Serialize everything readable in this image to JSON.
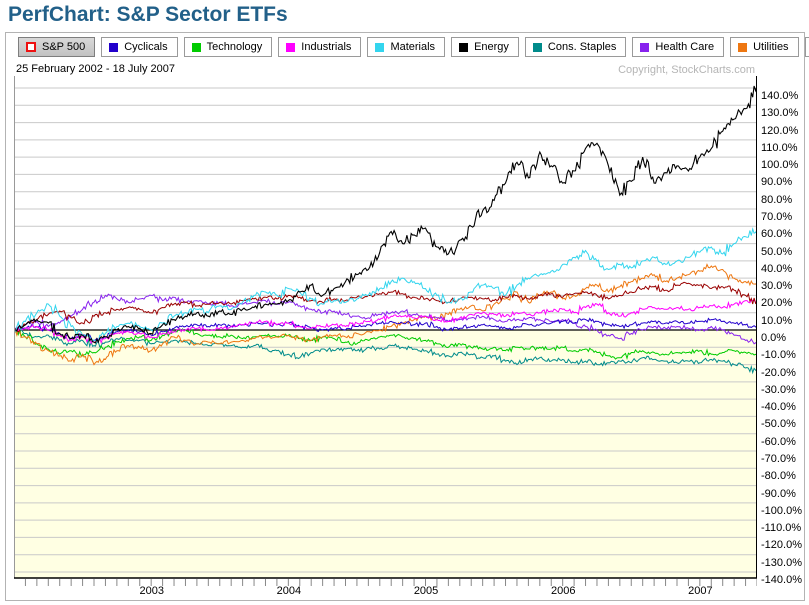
{
  "page": {
    "title": "PerfChart: S&P Sector ETFs",
    "date_range": "25 February 2002 - 18 July 2007",
    "copyright": "Copyright, StockCharts.com"
  },
  "colors": {
    "title_text": "#226089",
    "grid_line": "#c9c9c9",
    "zero_line": "#000000",
    "below_zero_bg": "#ffffe3",
    "above_zero_bg": "#ffffff",
    "plot_left_border": "#999999",
    "plot_right_border": "#000000",
    "axis_line": "#000000",
    "tick_mark": "#888888"
  },
  "legend": {
    "items": [
      {
        "label": "S&P 500",
        "color": "#ee1111",
        "swatch": "outline",
        "selected": true
      },
      {
        "label": "Cyclicals",
        "color": "#2200cc",
        "swatch": "filled",
        "selected": false
      },
      {
        "label": "Technology",
        "color": "#00cc00",
        "swatch": "filled",
        "selected": false
      },
      {
        "label": "Industrials",
        "color": "#ff00ff",
        "swatch": "filled",
        "selected": false
      },
      {
        "label": "Materials",
        "color": "#33d5ee",
        "swatch": "filled",
        "selected": false
      },
      {
        "label": "Energy",
        "color": "#000000",
        "swatch": "filled",
        "selected": false
      },
      {
        "label": "Cons. Staples",
        "color": "#008b8b",
        "swatch": "filled",
        "selected": false
      },
      {
        "label": "Health Care",
        "color": "#8822ee",
        "swatch": "filled",
        "selected": false
      },
      {
        "label": "Utilities",
        "color": "#ee7711",
        "swatch": "filled",
        "selected": false
      },
      {
        "label": "Financials",
        "color": "#990000",
        "swatch": "filled",
        "selected": false
      }
    ]
  },
  "chart_data": {
    "type": "line",
    "title": "PerfChart: S&P Sector ETFs",
    "x_range_label": "25 February 2002 - 18 July 2007",
    "x_granularity": "monthly estimates read from daily chart, Feb 2002 - Jul 2007",
    "ylim": [
      -140,
      140
    ],
    "y_step": 10,
    "unit": "%",
    "grid": true,
    "y_tick_labels": [
      "140.0%",
      "130.0%",
      "120.0%",
      "110.0%",
      "100.0%",
      "90.0%",
      "80.0%",
      "70.0%",
      "60.0%",
      "50.0%",
      "40.0%",
      "30.0%",
      "20.0%",
      "10.0%",
      "0.0%",
      "-10.0%",
      "-20.0%",
      "-30.0%",
      "-40.0%",
      "-50.0%",
      "-60.0%",
      "-70.0%",
      "-80.0%",
      "-90.0%",
      "-100.0%",
      "-110.0%",
      "-120.0%",
      "-130.0%",
      "-140.0%"
    ],
    "x_year_ticks": [
      {
        "label": "2003",
        "month_index": 11
      },
      {
        "label": "2004",
        "month_index": 23
      },
      {
        "label": "2005",
        "month_index": 35
      },
      {
        "label": "2006",
        "month_index": 47
      },
      {
        "label": "2007",
        "month_index": 59
      }
    ],
    "months_total": 66,
    "series": [
      {
        "name": "S&P 500",
        "color": "#ee1111",
        "visible": false,
        "values": []
      },
      {
        "name": "Cons. Staples",
        "color": "#008b8b",
        "visible": true,
        "values": [
          0,
          -2,
          -4,
          -3,
          -6,
          -8,
          -6,
          -9,
          -7,
          -5,
          -6,
          -6,
          -8,
          -7,
          -6,
          -7,
          -8,
          -9,
          -8,
          -9,
          -10,
          -9,
          -11,
          -12,
          -14,
          -16,
          -13,
          -11,
          -12,
          -11,
          -12,
          -10,
          -11,
          -9,
          -10,
          -11,
          -12,
          -14,
          -15,
          -13,
          -14,
          -16,
          -15,
          -18,
          -20,
          -17,
          -16,
          -18,
          -17,
          -19,
          -18,
          -20,
          -19,
          -18,
          -19,
          -16,
          -17,
          -18,
          -19,
          -18,
          -19,
          -17,
          -18,
          -20,
          -22,
          -24
        ]
      },
      {
        "name": "Technology",
        "color": "#00cc00",
        "visible": true,
        "values": [
          0,
          -4,
          -8,
          -11,
          -14,
          -12,
          -15,
          -13,
          -10,
          -7,
          -5,
          -4,
          -6,
          -3,
          -1,
          0,
          -2,
          -3,
          -4,
          -3,
          -5,
          -4,
          -3,
          -4,
          -3,
          -5,
          -6,
          -4,
          -5,
          -7,
          -8,
          -6,
          -4,
          -3,
          -4,
          -5,
          -6,
          -8,
          -10,
          -8,
          -10,
          -11,
          -10,
          -12,
          -10,
          -11,
          -10,
          -11,
          -10,
          -12,
          -11,
          -13,
          -15,
          -16,
          -13,
          -12,
          -13,
          -14,
          -13,
          -13,
          -12,
          -14,
          -13,
          -12,
          -13,
          -14
        ]
      },
      {
        "name": "Utilities",
        "color": "#ee7711",
        "visible": true,
        "values": [
          0,
          -4,
          -8,
          -12,
          -15,
          -18,
          -14,
          -20,
          -17,
          -12,
          -9,
          -10,
          -12,
          -8,
          -4,
          -6,
          -8,
          -7,
          -8,
          -7,
          -6,
          -5,
          -4,
          -4,
          -3,
          -5,
          -6,
          -4,
          -3,
          -4,
          -2,
          -1,
          0,
          2,
          4,
          6,
          8,
          6,
          9,
          12,
          14,
          11,
          15,
          18,
          22,
          16,
          20,
          22,
          18,
          20,
          24,
          26,
          22,
          25,
          28,
          30,
          32,
          28,
          30,
          32,
          34,
          37,
          35,
          30,
          28,
          26
        ]
      },
      {
        "name": "Health Care",
        "color": "#8822ee",
        "visible": true,
        "values": [
          0,
          3,
          5,
          2,
          4,
          8,
          12,
          16,
          20,
          18,
          16,
          18,
          20,
          17,
          19,
          16,
          17,
          15,
          16,
          14,
          15,
          16,
          17,
          15,
          16,
          14,
          12,
          10,
          11,
          9,
          8,
          7,
          9,
          10,
          11,
          9,
          8,
          7,
          5,
          6,
          7,
          8,
          6,
          5,
          6,
          7,
          6,
          5,
          6,
          4,
          2,
          0,
          -3,
          -5,
          -2,
          0,
          2,
          1,
          2,
          1,
          0,
          2,
          0,
          -3,
          -6,
          -8
        ]
      },
      {
        "name": "Cyclicals",
        "color": "#2200cc",
        "visible": true,
        "values": [
          0,
          1,
          2,
          0,
          -2,
          -5,
          -3,
          -6,
          -4,
          -1,
          0,
          -1,
          -3,
          -1,
          1,
          2,
          3,
          2,
          3,
          2,
          3,
          4,
          4,
          3,
          4,
          2,
          1,
          0,
          1,
          0,
          2,
          3,
          4,
          5,
          4,
          3,
          4,
          2,
          0,
          1,
          2,
          3,
          2,
          1,
          2,
          3,
          3,
          4,
          5,
          4,
          6,
          5,
          3,
          2,
          3,
          4,
          5,
          4,
          5,
          4,
          5,
          6,
          5,
          4,
          3,
          1
        ]
      },
      {
        "name": "Industrials",
        "color": "#ff00ff",
        "visible": true,
        "values": [
          0,
          1,
          2,
          0,
          -3,
          -6,
          -4,
          -7,
          -5,
          -2,
          -1,
          -2,
          -4,
          -2,
          -1,
          0,
          1,
          0,
          1,
          2,
          3,
          4,
          5,
          3,
          4,
          2,
          1,
          2,
          3,
          2,
          4,
          5,
          6,
          8,
          8,
          7,
          8,
          6,
          5,
          7,
          9,
          10,
          9,
          8,
          10,
          9,
          10,
          11,
          12,
          10,
          13,
          15,
          10,
          8,
          10,
          12,
          13,
          12,
          13,
          12,
          13,
          14,
          13,
          15,
          17,
          16
        ]
      },
      {
        "name": "Financials",
        "color": "#990000",
        "visible": true,
        "values": [
          0,
          3,
          6,
          9,
          11,
          7,
          4,
          8,
          10,
          12,
          13,
          12,
          10,
          13,
          15,
          16,
          14,
          15,
          16,
          15,
          17,
          18,
          19,
          18,
          20,
          19,
          17,
          16,
          18,
          17,
          19,
          20,
          21,
          22,
          21,
          19,
          18,
          17,
          16,
          18,
          19,
          18,
          17,
          19,
          20,
          18,
          20,
          21,
          19,
          21,
          22,
          20,
          18,
          20,
          22,
          24,
          25,
          23,
          26,
          27,
          26,
          24,
          25,
          23,
          20,
          16
        ]
      },
      {
        "name": "Materials",
        "color": "#33d5ee",
        "visible": true,
        "values": [
          0,
          5,
          10,
          15,
          8,
          2,
          -3,
          -6,
          -2,
          2,
          4,
          2,
          0,
          4,
          8,
          10,
          12,
          10,
          14,
          12,
          16,
          20,
          22,
          20,
          24,
          22,
          18,
          15,
          17,
          16,
          18,
          20,
          24,
          28,
          30,
          28,
          24,
          20,
          16,
          18,
          22,
          26,
          24,
          20,
          26,
          30,
          32,
          34,
          38,
          42,
          46,
          40,
          35,
          38,
          36,
          40,
          42,
          38,
          40,
          42,
          45,
          48,
          44,
          50,
          54,
          58
        ]
      },
      {
        "name": "Energy",
        "color": "#000000",
        "visible": true,
        "values": [
          0,
          3,
          6,
          4,
          -2,
          -5,
          -3,
          -7,
          -4,
          0,
          2,
          1,
          -2,
          3,
          6,
          8,
          10,
          8,
          11,
          9,
          12,
          13,
          15,
          15,
          17,
          22,
          26,
          20,
          24,
          28,
          32,
          35,
          45,
          57,
          50,
          55,
          59,
          48,
          44,
          52,
          60,
          69,
          75,
          85,
          97,
          88,
          103,
          95,
          85,
          92,
          105,
          108,
          95,
          78,
          86,
          100,
          85,
          91,
          95,
          92,
          100,
          105,
          115,
          122,
          128,
          141
        ]
      }
    ]
  }
}
